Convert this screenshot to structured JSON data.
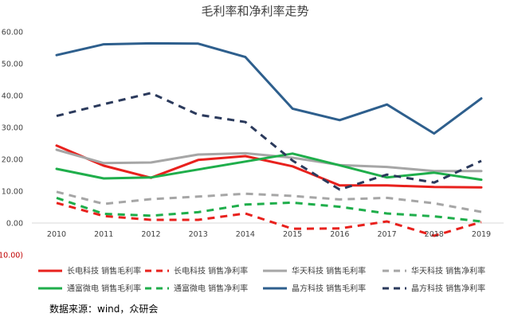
{
  "chart_data": {
    "type": "line",
    "title": "毛利率和净利率走势",
    "x": [
      "2010",
      "2011",
      "2012",
      "2013",
      "2014",
      "2015",
      "2016",
      "2017",
      "2018",
      "2019"
    ],
    "y_ticks": [
      "60.00",
      "50.00",
      "40.00",
      "30.00",
      "20.00",
      "10.00",
      "0.00",
      "(10.00)"
    ],
    "ylim": [
      -10,
      60
    ],
    "grid": false,
    "legend_position": "bottom",
    "series": [
      {
        "name": "长电科技 销售毛利率",
        "color": "#e8211d",
        "dash": "solid",
        "values": [
          24.3,
          18.0,
          14.2,
          19.8,
          21.0,
          17.8,
          11.8,
          11.8,
          11.3,
          11.2
        ]
      },
      {
        "name": "长电科技 销售净利率",
        "color": "#e8211d",
        "dash": "dashed",
        "values": [
          6.3,
          2.2,
          1.0,
          1.0,
          3.0,
          -1.8,
          -1.7,
          0.5,
          -4.0,
          0.3
        ]
      },
      {
        "name": "华天科技 销售毛利率",
        "color": "#a6a6a6",
        "dash": "solid",
        "values": [
          23.0,
          18.8,
          19.0,
          21.5,
          21.9,
          20.5,
          18.2,
          17.6,
          16.3,
          16.3
        ]
      },
      {
        "name": "华天科技 销售净利率",
        "color": "#a6a6a6",
        "dash": "dashed",
        "values": [
          9.8,
          6.0,
          7.5,
          8.3,
          9.2,
          8.5,
          7.4,
          7.9,
          6.2,
          3.5
        ]
      },
      {
        "name": "通富微电 销售毛利率",
        "color": "#1fae4b",
        "dash": "solid",
        "values": [
          17.0,
          14.0,
          14.3,
          16.8,
          19.3,
          21.8,
          18.1,
          14.3,
          15.8,
          13.6
        ]
      },
      {
        "name": "通富微电 销售净利率",
        "color": "#1fae4b",
        "dash": "dashed",
        "values": [
          7.9,
          2.9,
          2.3,
          3.4,
          5.8,
          6.4,
          5.1,
          3.0,
          2.1,
          0.5
        ]
      },
      {
        "name": "晶方科技 销售毛利率",
        "color": "#2e5f8d",
        "dash": "solid",
        "values": [
          52.7,
          56.1,
          56.4,
          56.3,
          52.1,
          35.9,
          32.3,
          37.2,
          28.1,
          39.1
        ]
      },
      {
        "name": "晶方科技 销售净利率",
        "color": "#2b3a5c",
        "dash": "dashed",
        "values": [
          33.6,
          37.3,
          40.8,
          34.0,
          31.7,
          19.6,
          10.5,
          15.2,
          12.7,
          19.5
        ]
      }
    ]
  },
  "source_text": "数据来源：wind，众研会"
}
